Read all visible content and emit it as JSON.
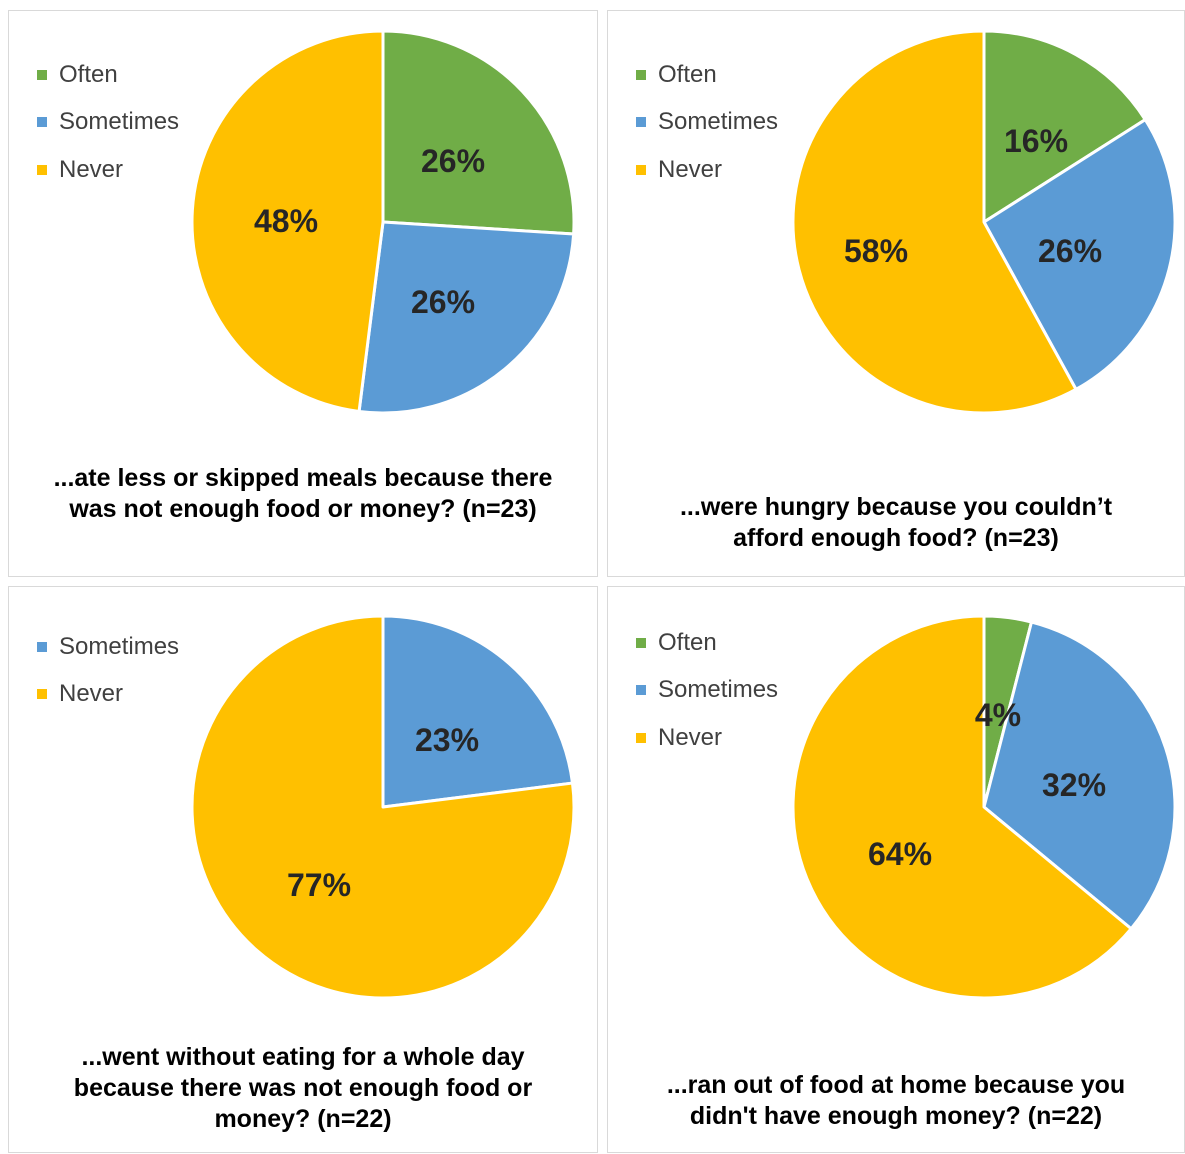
{
  "colors": {
    "Often": "#70ad47",
    "Sometimes": "#5b9bd5",
    "Never": "#ffc000"
  },
  "chart_data": [
    {
      "type": "pie",
      "title": "...ate less or skipped meals because there was not enough food or money? (n=23)",
      "legend": [
        "Often",
        "Sometimes",
        "Never"
      ],
      "categories": [
        "Often",
        "Sometimes",
        "Never"
      ],
      "values": [
        26,
        26,
        48
      ],
      "labels": [
        "26%",
        "26%",
        "48%"
      ]
    },
    {
      "type": "pie",
      "title": "...were hungry because you couldn’t afford enough food? (n=23)",
      "legend": [
        "Often",
        "Sometimes",
        "Never"
      ],
      "categories": [
        "Often",
        "Sometimes",
        "Never"
      ],
      "values": [
        16,
        26,
        58
      ],
      "labels": [
        "16%",
        "26%",
        "58%"
      ]
    },
    {
      "type": "pie",
      "title": "...went without eating for a whole day because there was not enough food or money? (n=22)",
      "legend": [
        "Sometimes",
        "Never"
      ],
      "categories": [
        "Sometimes",
        "Never"
      ],
      "values": [
        23,
        77
      ],
      "labels": [
        "23%",
        "77%"
      ]
    },
    {
      "type": "pie",
      "title": "...ran out of food at home because you didn't have enough money? (n=22)",
      "legend": [
        "Often",
        "Sometimes",
        "Never"
      ],
      "categories": [
        "Often",
        "Sometimes",
        "Never"
      ],
      "values": [
        4,
        32,
        64
      ],
      "labels": [
        "4%",
        "32%",
        "64%"
      ]
    }
  ]
}
